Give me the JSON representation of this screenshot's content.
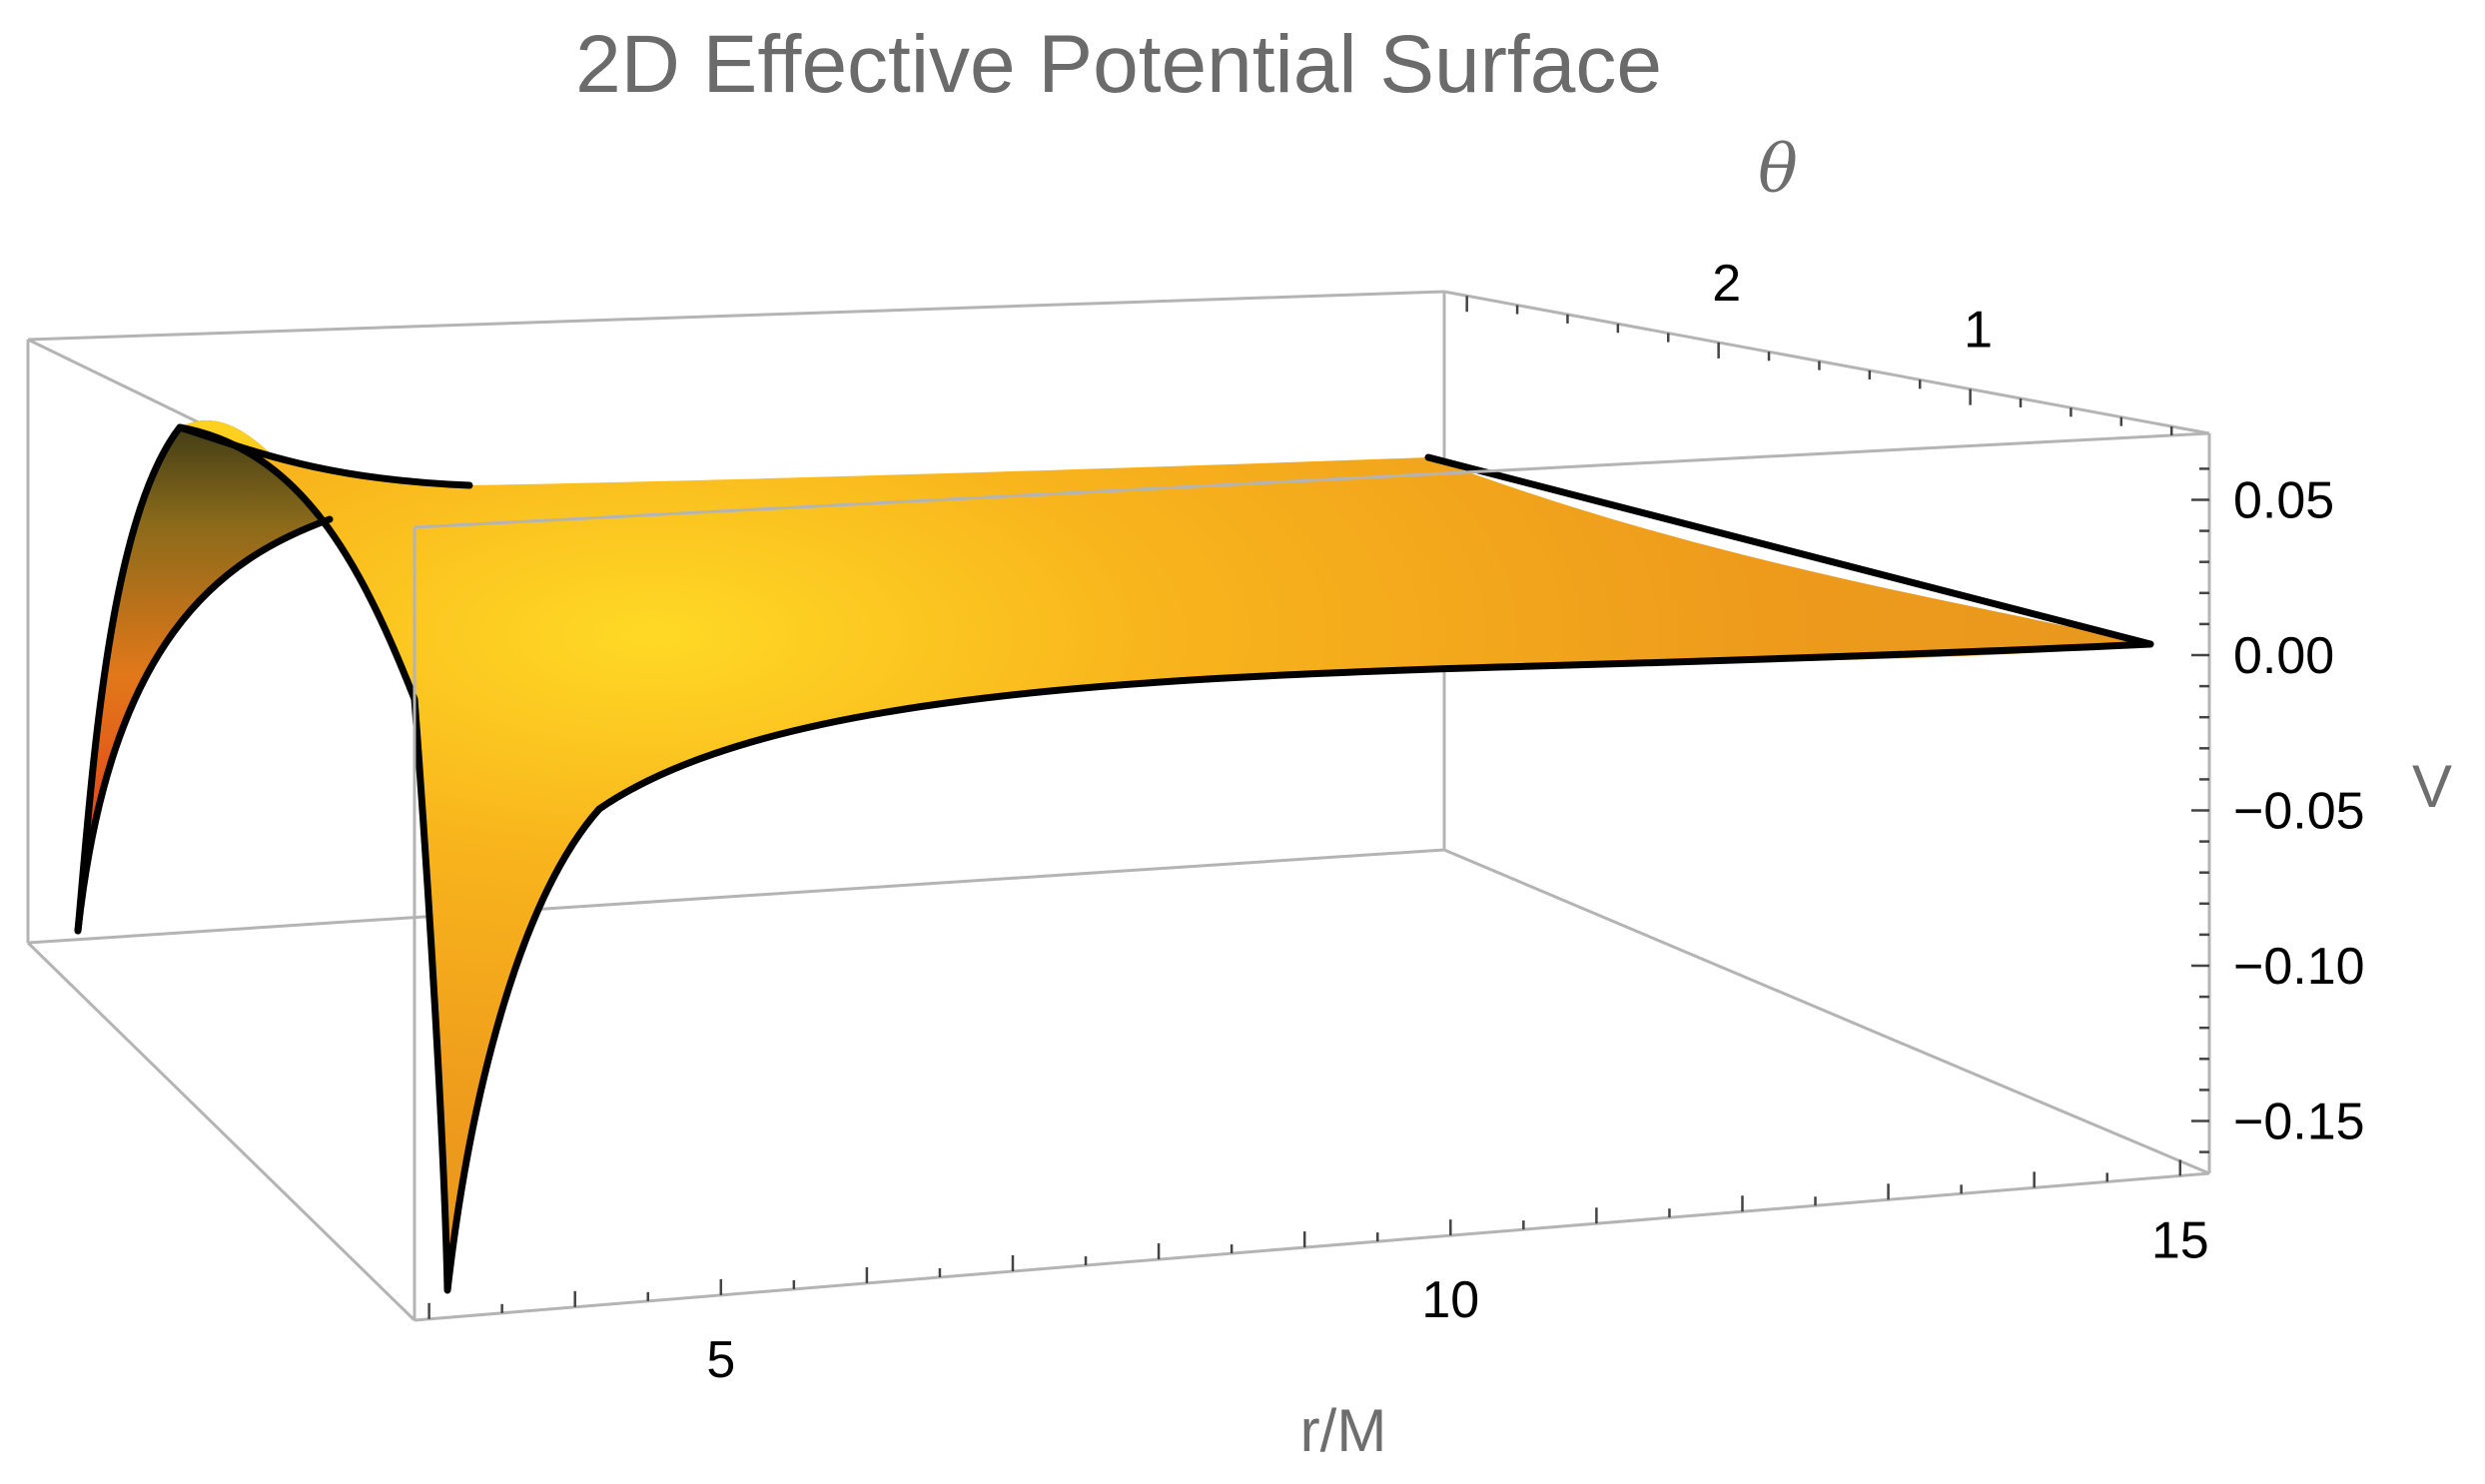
{
  "chart_data": {
    "type": "surface3d",
    "title": "2D Effective Potential Surface",
    "xlabel": "r/M",
    "ylabel": "θ",
    "zlabel": "V",
    "x_ticks": [
      "5",
      "10",
      "15"
    ],
    "y_ticks": [
      "2",
      "1"
    ],
    "z_ticks": [
      "0.05",
      "0.00",
      "−0.05",
      "−0.10",
      "−0.15"
    ],
    "xlim": [
      2.9,
      15.2
    ],
    "ylim": [
      0.05,
      3.09
    ],
    "zlim": [
      -0.165,
      0.07
    ],
    "edge_curves": [
      {
        "theta": 3.09,
        "r": [
          2.9,
          3.1,
          3.4,
          3.8,
          4.3,
          5,
          6,
          8,
          10,
          12,
          15
        ],
        "V": [
          -0.162,
          -0.09,
          -0.05,
          -0.03,
          -0.018,
          -0.011,
          -0.006,
          -0.003,
          -0.0015,
          -0.0008,
          0.0
        ]
      },
      {
        "r": 2.9,
        "theta": [
          0.05,
          0.5,
          1.0,
          1.57,
          2.1,
          2.6,
          3.09
        ],
        "V": [
          -0.09,
          0.035,
          0.06,
          0.065,
          0.06,
          0.035,
          -0.162
        ]
      }
    ],
    "colors": {
      "surface_light": "#ffd21f",
      "surface_mid": "#f0a020",
      "surface_deep": "#e84812",
      "surface_dark": "#9e1406",
      "edge": "#000000",
      "box": "#b4b4b4"
    },
    "grid": false,
    "legend": "none"
  }
}
